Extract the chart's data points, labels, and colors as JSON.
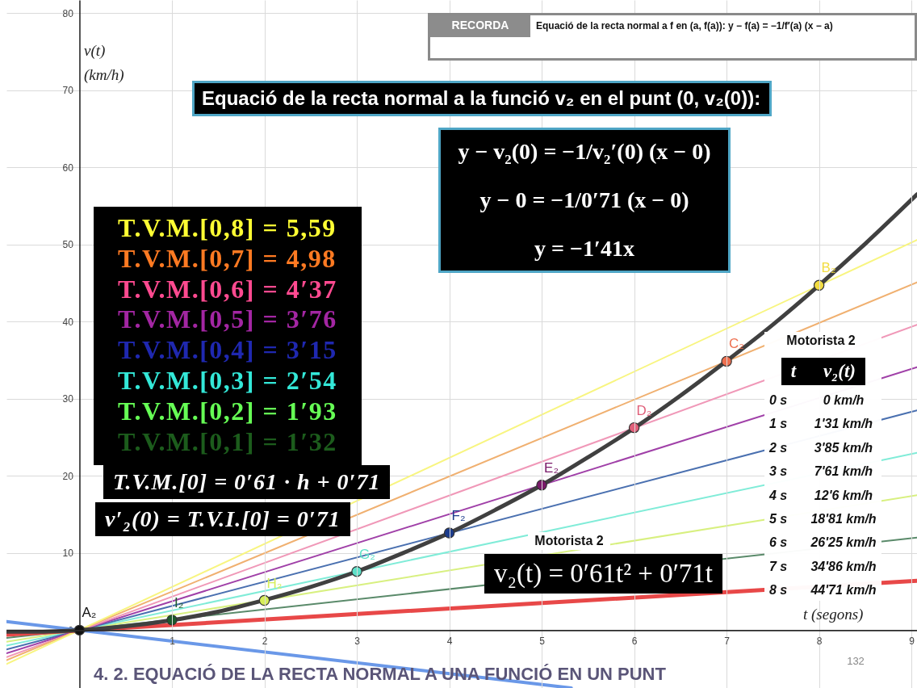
{
  "chart_data": {
    "type": "line",
    "title": "4. 2. EQUACIÓ DE LA RECTA NORMAL A UNA FUNCIÓ EN UN PUNT",
    "xlabel": "t (segons)",
    "ylabel": "v(t) (km/h)",
    "xlim": [
      -0.79,
      9.06
    ],
    "ylim": [
      -7.5,
      81.7
    ],
    "xticks": [
      1,
      2,
      3,
      4,
      5,
      6,
      7,
      8,
      9
    ],
    "yticks": [
      0,
      10,
      20,
      30,
      40,
      50,
      60,
      70,
      80
    ],
    "grid": true,
    "series": [
      {
        "type": "line",
        "color": "#5a8a6a",
        "x": [
          -0.79,
          9.06
        ],
        "values": [
          -1.0,
          12.0
        ]
      },
      {
        "type": "line",
        "color": "#d8f080",
        "x": [
          -0.79,
          9.06
        ],
        "values": [
          -1.5,
          17.5
        ]
      },
      {
        "type": "line",
        "color": "#80ecd8",
        "x": [
          -0.79,
          9.06
        ],
        "values": [
          -2.0,
          23.0
        ]
      },
      {
        "type": "line",
        "color": "#4a70b0",
        "x": [
          -0.79,
          9.06
        ],
        "values": [
          -2.5,
          28.5
        ]
      },
      {
        "type": "line",
        "color": "#a040a8",
        "x": [
          -0.79,
          9.06
        ],
        "values": [
          -3.0,
          34.1
        ]
      },
      {
        "type": "line",
        "color": "#f098b8",
        "x": [
          -0.79,
          9.06
        ],
        "values": [
          -3.5,
          39.6
        ]
      },
      {
        "type": "line",
        "color": "#f0b070",
        "x": [
          -0.79,
          9.06
        ],
        "values": [
          -3.9,
          45.1
        ]
      },
      {
        "type": "line",
        "color": "#f8f580",
        "x": [
          -0.79,
          9.06
        ],
        "values": [
          -4.4,
          50.6
        ]
      },
      {
        "type": "line",
        "color": "#e84848",
        "x": [
          -0.79,
          9.06
        ],
        "values": [
          -0.6,
          6.4
        ]
      },
      {
        "type": "line",
        "color": "#6a98e8",
        "x": [
          -0.79,
          5.32
        ],
        "values": [
          1.1,
          -7.5
        ]
      },
      {
        "type": "line",
        "color": "#404040",
        "x": [
          -0.79,
          -0.4,
          0,
          0.5,
          1,
          1.5,
          2,
          2.5,
          3,
          3.5,
          4,
          4.5,
          5,
          5.5,
          6,
          6.5,
          7,
          7.5,
          8,
          8.5,
          9.06
        ],
        "values": [
          -0.2,
          -0.2,
          0,
          0.5,
          1.3,
          2.4,
          3.9,
          5.6,
          7.6,
          10.0,
          12.6,
          15.6,
          18.8,
          22.4,
          26.2,
          30.4,
          34.9,
          39.6,
          44.7,
          50.1,
          56.5
        ]
      },
      {
        "type": "scatter",
        "marker": "circle",
        "x": [
          0,
          1,
          2,
          3,
          4,
          5,
          6,
          7,
          8
        ],
        "values": [
          0,
          1.31,
          3.85,
          7.61,
          12.6,
          18.81,
          26.25,
          34.86,
          44.71
        ],
        "colors": [
          "#111111",
          "#1c5a2c",
          "#d6ee5a",
          "#5ee0c8",
          "#1c3c8c",
          "#7a1a6a",
          "#e0607a",
          "#ee7050",
          "#f2dc40"
        ]
      }
    ],
    "annotations": [
      "RECORDA",
      "Equació de la recta normal a f en (a, f(a)): y − f(a) = −1/f′(a) (x − a)",
      "Equació de la recta normal a la funció v₂ en el punt (0, v₂(0)):",
      "y − v₂(0) = −1/v₂′(0) (x − 0)",
      "y − 0 = −1/0′71 (x − 0)",
      "y = −1′41x",
      "T.V.M.[0,8] = 5,59",
      "T.V.M.[0,7] = 4,98",
      "T.V.M.[0,6] = 4′37",
      "T.V.M.[0,5] = 3′76",
      "T.V.M.[0,4] = 3′15",
      "T.V.M.[0,3] = 2′54",
      "T.V.M.[0,2] = 1′93",
      "T.V.M.[0,1] = 1′32",
      "T.V.M.[0] = 0′61 · h + 0′71",
      "v′₂(0) = T.V.I.[0] = 0′71",
      "Motorista 2",
      "v₂(t) = 0′61t² + 0′71t",
      "Motorista 2",
      "t",
      "v₂(t)",
      "0 s",
      "0 km/h",
      "1 s",
      "1'31 km/h",
      "2 s",
      "3'85 km/h",
      "3 s",
      "7'61 km/h",
      "4 s",
      "12'6 km/h",
      "5 s",
      "18'81 km/h",
      "6 s",
      "26'25 km/h",
      "7 s",
      "34'86 km/h",
      "8 s",
      "44'71 km/h",
      "132",
      {
        "text": "A₂",
        "x": 0,
        "y": 0
      },
      {
        "text": "I₂",
        "x": 1,
        "y": 1.31
      },
      {
        "text": "H₂",
        "x": 2,
        "y": 3.85
      },
      {
        "text": "G₂",
        "x": 3,
        "y": 7.61
      },
      {
        "text": "F₂",
        "x": 4,
        "y": 12.6
      },
      {
        "text": "E₂",
        "x": 5,
        "y": 18.81
      },
      {
        "text": "D₂",
        "x": 6,
        "y": 26.25
      },
      {
        "text": "C₂",
        "x": 7,
        "y": 34.86
      },
      {
        "text": "B₂",
        "x": 8,
        "y": 44.71
      }
    ]
  }
}
